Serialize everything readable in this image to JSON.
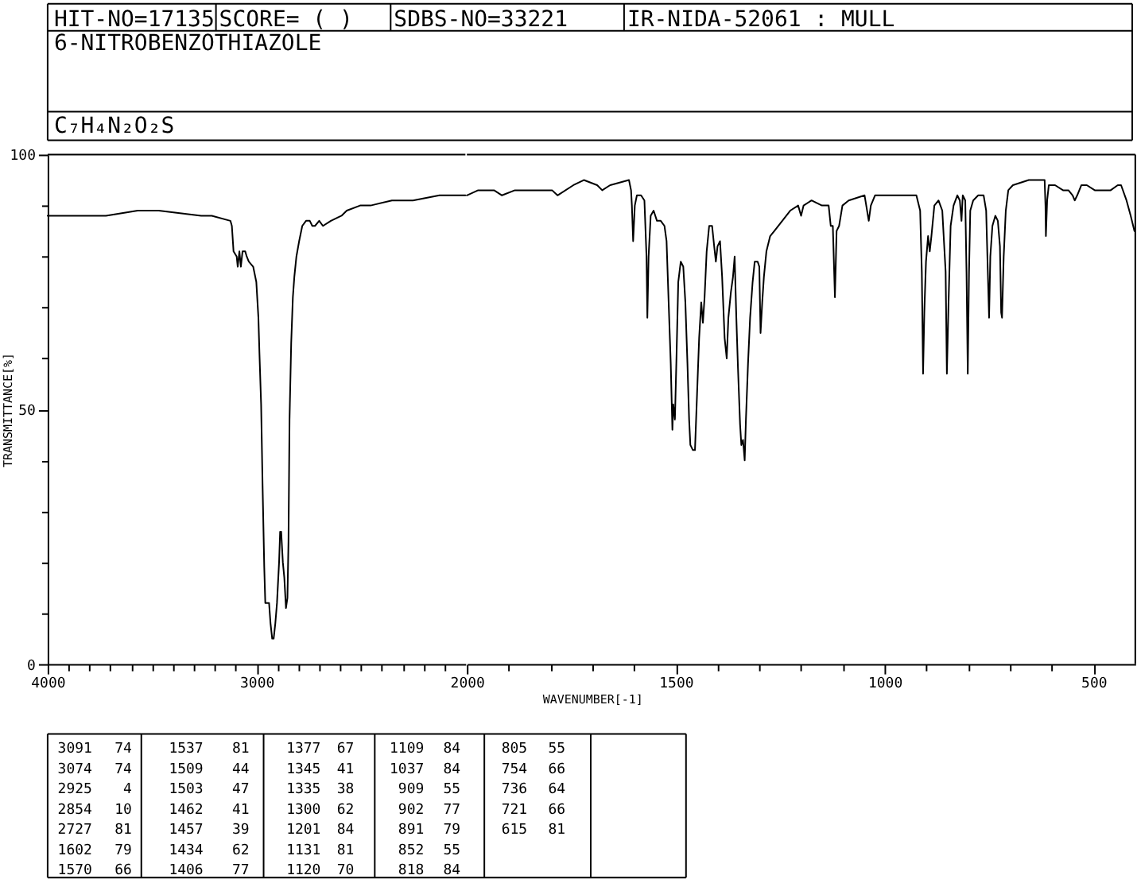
{
  "chart_data": [
    {
      "type": "line",
      "title": "6-NITROBENZOTHIAZOLE",
      "subtitle": "C₇H₄N₂O₂S",
      "ylabel": "TRANSMITTANCE[%]",
      "color": "#000000",
      "x": [
        4000,
        3873,
        3721,
        3569,
        3468,
        3265,
        3214,
        3125,
        3118,
        3110,
        3095,
        3090,
        3082,
        3075,
        3067,
        3054,
        3047,
        3037,
        3016,
        3001,
        2991,
        2986,
        2978,
        2971,
        2963,
        2958,
        2940,
        2933,
        2925,
        2918,
        2910,
        2902,
        2892,
        2887,
        2882,
        2874,
        2867,
        2859,
        2852,
        2847,
        2842,
        2834,
        2826,
        2819,
        2809,
        2796,
        2781,
        2763,
        2745,
        2733,
        2720,
        2700,
        2682,
        2644,
        2593,
        2568,
        2504,
        2454,
        2352,
        2251,
        2124,
        2048,
        2000
      ],
      "values": [
        88,
        88,
        88,
        89,
        89,
        88,
        88,
        87,
        86,
        81,
        80,
        78,
        81,
        78,
        81,
        81,
        80,
        79,
        78,
        75,
        68,
        61,
        51,
        35,
        19,
        12,
        12,
        8,
        5,
        5,
        8,
        12,
        20,
        26,
        26,
        20,
        17,
        11,
        13,
        24,
        48,
        63,
        72,
        76,
        80,
        83,
        86,
        87,
        87,
        86,
        86,
        87,
        86,
        87,
        88,
        89,
        90,
        90,
        91,
        91,
        92,
        92,
        92
      ],
      "xlim": [
        4000,
        2000
      ],
      "xticks": [
        4000,
        {
          "value": 3900,
          "label": null
        },
        {
          "value": 3800,
          "label": null
        },
        {
          "value": 3700,
          "label": null
        },
        {
          "value": 3600,
          "label": null
        },
        {
          "value": 3500,
          "label": null
        },
        {
          "value": 3400,
          "label": null
        },
        {
          "value": 3300,
          "label": null
        },
        {
          "value": 3200,
          "label": null
        },
        {
          "value": 3100,
          "label": null
        },
        3000,
        {
          "value": 2900,
          "label": null
        },
        {
          "value": 2800,
          "label": null
        },
        {
          "value": 2700,
          "label": null
        },
        {
          "value": 2600,
          "label": null
        },
        {
          "value": 2500,
          "label": null
        },
        {
          "value": 2400,
          "label": null
        },
        {
          "value": 2300,
          "label": null
        },
        {
          "value": 2200,
          "label": null
        },
        {
          "value": 2100,
          "label": null
        }
      ],
      "ylim": [
        0,
        100
      ],
      "yticks": [
        0,
        {
          "value": 10,
          "label": null
        },
        {
          "value": 20,
          "label": null
        },
        {
          "value": 30,
          "label": null
        },
        {
          "value": 40,
          "label": null
        },
        50,
        {
          "value": 60,
          "label": null
        },
        {
          "value": 70,
          "label": null
        },
        {
          "value": 80,
          "label": null
        },
        {
          "value": 90,
          "label": null
        },
        100
      ],
      "annotations": [
        "HIT-NO=17135",
        "SCORE=   (  )",
        "SDBS-NO=33221",
        "IR-NIDA-52061 : MULL",
        "3091",
        "74",
        "3074",
        "74",
        "2925",
        "4",
        "2854",
        "10",
        "2727",
        "81",
        "1602",
        "79",
        "1570",
        "66",
        "1537",
        "81",
        "1509",
        "44",
        "1503",
        "47",
        "1462",
        "41",
        "1457",
        "39",
        "1434",
        "62",
        "1406",
        "77",
        "1377",
        "67",
        "1345",
        "41",
        "1335",
        "38",
        "1300",
        "62",
        "1201",
        "84",
        "1131",
        "81",
        "1120",
        "70",
        "1109",
        "84",
        "1037",
        "84",
        "909",
        "55",
        "902",
        "77",
        "891",
        "79",
        "852",
        "55",
        "818",
        "84",
        "805",
        "55",
        "754",
        "66",
        "736",
        "64",
        "721",
        "66",
        "615",
        "81"
      ]
    },
    {
      "type": "line",
      "xlabel": "WAVENUMBER[-1]",
      "color": "#000000",
      "x": [
        2000,
        1973,
        1935,
        1916,
        1885,
        1796,
        1783,
        1745,
        1720,
        1688,
        1676,
        1657,
        1612,
        1607,
        1605,
        1602,
        1598,
        1593,
        1583,
        1575,
        1570,
        1568,
        1565,
        1560,
        1553,
        1545,
        1536,
        1527,
        1522,
        1517,
        1512,
        1508,
        1506,
        1502,
        1498,
        1494,
        1488,
        1482,
        1477,
        1472,
        1468,
        1465,
        1459,
        1454,
        1449,
        1444,
        1439,
        1435,
        1431,
        1426,
        1420,
        1413,
        1408,
        1404,
        1400,
        1394,
        1389,
        1383,
        1378,
        1374,
        1368,
        1363,
        1359,
        1355,
        1351,
        1346,
        1343,
        1339,
        1335,
        1332,
        1327,
        1322,
        1316,
        1311,
        1304,
        1300,
        1297,
        1293,
        1289,
        1283,
        1274,
        1264,
        1245,
        1226,
        1207,
        1200,
        1194,
        1175,
        1150,
        1134,
        1129,
        1124,
        1119,
        1115,
        1109,
        1101,
        1086,
        1048,
        1038,
        1033,
        1023,
        998,
        960,
        924,
        915,
        911,
        908,
        905,
        901,
        896,
        892,
        888,
        881,
        871,
        862,
        854,
        851,
        847,
        842,
        835,
        826,
        820,
        816,
        813,
        807,
        804,
        801,
        798,
        795,
        788,
        776,
        763,
        757,
        753,
        750,
        747,
        742,
        735,
        729,
        724,
        721,
        719,
        715,
        710,
        704,
        693,
        655,
        624,
        617,
        615,
        614,
        611,
        607,
        592,
        573,
        560,
        550,
        545,
        539,
        529,
        516,
        497,
        478,
        459,
        442,
        434,
        421,
        411,
        402
      ],
      "values": [
        92,
        93,
        93,
        92,
        93,
        93,
        92,
        94,
        95,
        94,
        93,
        94,
        95,
        93,
        90,
        83,
        90,
        92,
        92,
        91,
        80,
        68,
        80,
        88,
        89,
        87,
        87,
        86,
        83,
        71,
        59,
        46,
        51,
        48,
        61,
        75,
        79,
        78,
        71,
        59,
        48,
        43,
        42,
        42,
        53,
        64,
        71,
        67,
        72,
        81,
        86,
        86,
        82,
        79,
        82,
        83,
        76,
        64,
        60,
        68,
        73,
        76,
        80,
        68,
        58,
        47,
        43,
        44,
        40,
        48,
        59,
        68,
        75,
        79,
        79,
        78,
        65,
        71,
        76,
        81,
        84,
        85,
        87,
        89,
        90,
        88,
        90,
        91,
        90,
        90,
        86,
        86,
        72,
        85,
        86,
        90,
        91,
        92,
        87,
        90,
        92,
        92,
        92,
        92,
        89,
        77,
        57,
        69,
        79,
        84,
        81,
        84,
        90,
        91,
        89,
        77,
        57,
        71,
        86,
        90,
        92,
        91,
        87,
        92,
        91,
        77,
        57,
        77,
        89,
        91,
        92,
        92,
        89,
        77,
        68,
        80,
        86,
        88,
        87,
        82,
        69,
        68,
        80,
        89,
        93,
        94,
        95,
        95,
        95,
        90,
        84,
        91,
        94,
        94,
        93,
        93,
        92,
        91,
        92,
        94,
        94,
        93,
        93,
        93,
        94,
        94,
        91,
        88,
        85
      ],
      "xlim": [
        2000,
        400
      ],
      "xticks": [
        2000,
        {
          "value": 1900,
          "label": null
        },
        {
          "value": 1800,
          "label": null
        },
        {
          "value": 1700,
          "label": null
        },
        {
          "value": 1600,
          "label": null
        },
        1500,
        {
          "value": 1400,
          "label": null
        },
        {
          "value": 1300,
          "label": null
        },
        {
          "value": 1200,
          "label": null
        },
        {
          "value": 1100,
          "label": null
        },
        1000,
        {
          "value": 900,
          "label": null
        },
        {
          "value": 800,
          "label": null
        },
        {
          "value": 700,
          "label": null
        },
        {
          "value": 600,
          "label": null
        },
        500
      ],
      "ylim": [
        0,
        100
      ],
      "tick_labels": "x"
    }
  ]
}
